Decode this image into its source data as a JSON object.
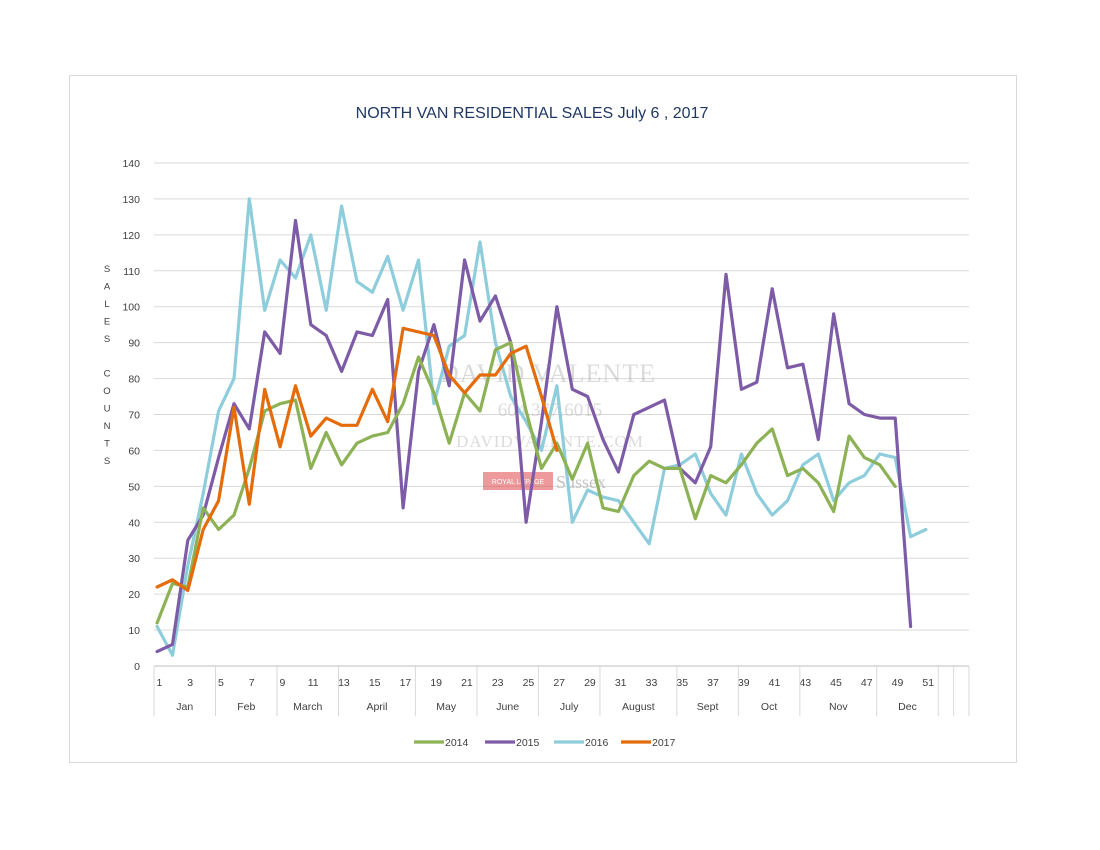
{
  "chart_data": {
    "type": "line",
    "title": "NORTH VAN RESIDENTIAL SALES July 6 , 2017",
    "ylabel": "S A L E S   C O U N T S",
    "ylim": [
      0,
      140
    ],
    "yticks": [
      0,
      10,
      20,
      30,
      40,
      50,
      60,
      70,
      80,
      90,
      100,
      110,
      120,
      130,
      140
    ],
    "xlim": [
      1,
      52
    ],
    "xticks": [
      1,
      3,
      5,
      7,
      9,
      11,
      13,
      15,
      17,
      19,
      21,
      23,
      25,
      27,
      29,
      31,
      33,
      35,
      37,
      39,
      41,
      43,
      45,
      47,
      49,
      51
    ],
    "month_groups": [
      {
        "label": "Jan",
        "start": 1,
        "end": 4
      },
      {
        "label": "Feb",
        "start": 5,
        "end": 8
      },
      {
        "label": "March",
        "start": 9,
        "end": 12
      },
      {
        "label": "April",
        "start": 13,
        "end": 17
      },
      {
        "label": "May",
        "start": 18,
        "end": 21
      },
      {
        "label": "June",
        "start": 22,
        "end": 25
      },
      {
        "label": "July",
        "start": 26,
        "end": 29
      },
      {
        "label": "August",
        "start": 30,
        "end": 34
      },
      {
        "label": "Sept",
        "start": 35,
        "end": 38
      },
      {
        "label": "Oct",
        "start": 39,
        "end": 42
      },
      {
        "label": "Nov",
        "start": 43,
        "end": 47
      },
      {
        "label": "Dec",
        "start": 48,
        "end": 51
      }
    ],
    "series": [
      {
        "name": "2014",
        "color": "#8db255",
        "values": [
          12,
          23,
          22,
          44,
          38,
          42,
          55,
          71,
          73,
          74,
          55,
          65,
          56,
          62,
          64,
          65,
          73,
          86,
          76,
          62,
          76,
          71,
          88,
          90,
          71,
          55,
          62,
          52,
          62,
          44,
          43,
          53,
          57,
          55,
          55,
          41,
          53,
          51,
          56,
          62,
          66,
          53,
          55,
          51,
          43,
          64,
          58,
          56,
          50
        ]
      },
      {
        "name": "2015",
        "color": "#7d5ba6",
        "values": [
          4,
          6,
          35,
          42,
          58,
          73,
          66,
          93,
          87,
          124,
          95,
          92,
          82,
          93,
          92,
          102,
          44,
          82,
          95,
          78,
          113,
          96,
          103,
          90,
          40,
          68,
          100,
          77,
          75,
          63,
          54,
          70,
          72,
          74,
          55,
          51,
          61,
          109,
          77,
          79,
          105,
          83,
          84,
          63,
          98,
          73,
          70,
          69,
          69,
          11
        ]
      },
      {
        "name": "2016",
        "color": "#8ecddb",
        "values": [
          11,
          3,
          28,
          48,
          71,
          80,
          130,
          99,
          113,
          108,
          120,
          99,
          128,
          107,
          104,
          114,
          99,
          113,
          73,
          89,
          92,
          118,
          90,
          75,
          68,
          60,
          78,
          40,
          49,
          47,
          46,
          40,
          34,
          55,
          56,
          59,
          48,
          42,
          59,
          48,
          42,
          46,
          56,
          59,
          46,
          51,
          53,
          59,
          58,
          36,
          38
        ]
      },
      {
        "name": "2017",
        "color": "#e46c0a",
        "values": [
          22,
          24,
          21,
          38,
          46,
          72,
          45,
          77,
          61,
          78,
          64,
          69,
          67,
          67,
          77,
          68,
          94,
          93,
          92,
          81,
          76,
          81,
          81,
          87,
          89,
          75,
          60
        ]
      }
    ],
    "legend": [
      "2014",
      "2015",
      "2016",
      "2017"
    ],
    "legend_position": "bottom",
    "grid": true
  },
  "watermark": {
    "name": "DAVID VALENTE",
    "phone": "604.377.6015",
    "site": "DAVIDVALENTE.COM",
    "brand": "ROYAL LEPAGE",
    "brand_suffix": "Sussex"
  }
}
